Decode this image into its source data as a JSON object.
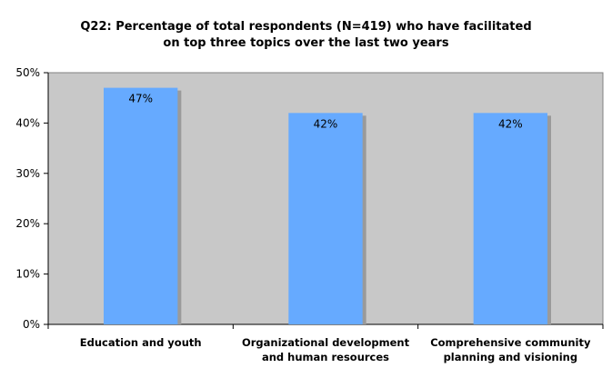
{
  "chart_data": {
    "type": "bar",
    "title_lines": [
      "Q22: Percentage of total respondents (N=419) who have facilitated",
      "on top three topics over the last two years"
    ],
    "categories": [
      [
        "Education and youth"
      ],
      [
        "Organizational development",
        "and human resources"
      ],
      [
        "Comprehensive community",
        "planning and visioning"
      ]
    ],
    "values": [
      47,
      42,
      42
    ],
    "data_labels": [
      "47%",
      "42%",
      "42%"
    ],
    "ylim": [
      0,
      50
    ],
    "yticks": [
      0,
      10,
      20,
      30,
      40,
      50
    ],
    "ytick_labels": [
      "0%",
      "10%",
      "20%",
      "30%",
      "40%",
      "50%"
    ],
    "grid": false,
    "legend": "none",
    "colors": {
      "bar": "#66aaff",
      "bar_shadow": "#9a9a9a",
      "plot_bg": "#c8c8c8",
      "axis": "#000000"
    }
  }
}
